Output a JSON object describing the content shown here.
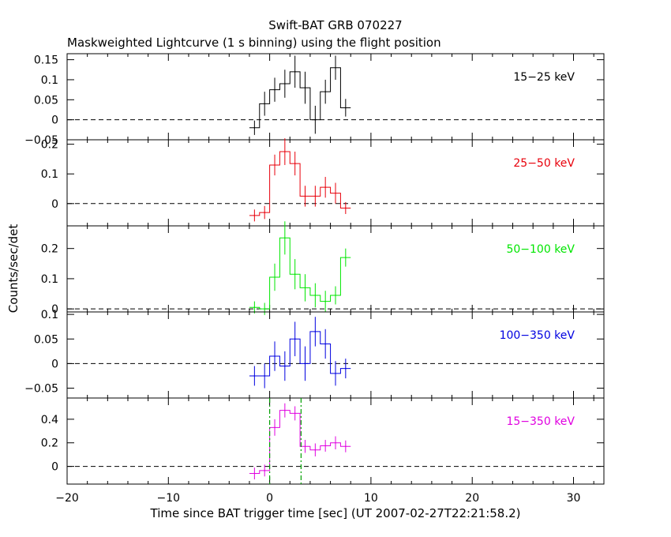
{
  "title": "Swift-BAT GRB 070227",
  "subtitle": "Maskweighted Lightcurve (1 s binning) using the flight position",
  "chart_data": {
    "type": "line",
    "xlabel": "Time since BAT trigger time [sec] (UT 2007-02-27T22:21:58.2)",
    "ylabel": "Counts/sec/det",
    "xlim": [
      -20,
      33
    ],
    "xticks": [
      -20,
      -10,
      0,
      10,
      20,
      30
    ],
    "xtick_labels": [
      "−20",
      "−10",
      "0",
      "10",
      "20",
      "30"
    ],
    "x": [
      -1.5,
      -0.5,
      0.5,
      1.5,
      2.5,
      3.5,
      4.5,
      5.5,
      6.5,
      7.5
    ],
    "vlines": [
      0.0,
      3.1
    ],
    "grid": false,
    "panels": [
      {
        "name": "15−25 keV",
        "color": "#000000",
        "ylim": [
          -0.05,
          0.165
        ],
        "yticks": [
          -0.05,
          0,
          0.05,
          0.1,
          0.15
        ],
        "ytick_labels": [
          "−0.05",
          "0",
          "0.05",
          "0.1",
          "0.15"
        ],
        "values": [
          -0.02,
          0.04,
          0.075,
          0.09,
          0.12,
          0.08,
          0.0,
          0.07,
          0.13,
          0.03
        ],
        "errors": [
          0.018,
          0.03,
          0.03,
          0.035,
          0.04,
          0.04,
          0.035,
          0.03,
          0.03,
          0.022
        ]
      },
      {
        "name": "25−50 keV",
        "color": "#e8000b",
        "ylim": [
          -0.075,
          0.215
        ],
        "yticks": [
          0,
          0.1,
          0.2
        ],
        "ytick_labels": [
          "0",
          "0.1",
          "0.2"
        ],
        "values": [
          -0.04,
          -0.03,
          0.13,
          0.175,
          0.135,
          0.025,
          0.025,
          0.055,
          0.035,
          -0.015
        ],
        "errors": [
          0.02,
          0.022,
          0.035,
          0.045,
          0.04,
          0.035,
          0.035,
          0.035,
          0.035,
          0.02
        ]
      },
      {
        "name": "50−100 keV",
        "color": "#00e600",
        "ylim": [
          -0.01,
          0.275
        ],
        "yticks": [
          0,
          0.1,
          0.2
        ],
        "ytick_labels": [
          "0",
          "0.1",
          "0.2"
        ],
        "values": [
          0.005,
          0.0,
          0.105,
          0.235,
          0.115,
          0.07,
          0.045,
          0.025,
          0.045,
          0.17
        ],
        "errors": [
          0.02,
          0.02,
          0.045,
          0.055,
          0.05,
          0.045,
          0.04,
          0.035,
          0.03,
          0.03
        ]
      },
      {
        "name": "100−350 keV",
        "color": "#0000e0",
        "ylim": [
          -0.07,
          0.105
        ],
        "yticks": [
          -0.05,
          0,
          0.05,
          0.1
        ],
        "ytick_labels": [
          "−0.05",
          "0",
          "0.05",
          "0.1"
        ],
        "values": [
          -0.025,
          -0.025,
          0.015,
          -0.005,
          0.05,
          0.0,
          0.065,
          0.04,
          -0.02,
          -0.01
        ],
        "errors": [
          0.02,
          0.025,
          0.03,
          0.03,
          0.035,
          0.035,
          0.03,
          0.03,
          0.025,
          0.02
        ]
      },
      {
        "name": "15−350 keV",
        "color": "#e000e0",
        "ylim": [
          -0.15,
          0.58
        ],
        "yticks": [
          0,
          0.2,
          0.4
        ],
        "ytick_labels": [
          "0",
          "0.2",
          "0.4"
        ],
        "values": [
          -0.06,
          -0.035,
          0.33,
          0.475,
          0.45,
          0.17,
          0.14,
          0.175,
          0.2,
          0.17
        ],
        "errors": [
          0.05,
          0.05,
          0.07,
          0.06,
          0.06,
          0.055,
          0.055,
          0.05,
          0.055,
          0.05
        ]
      }
    ]
  }
}
